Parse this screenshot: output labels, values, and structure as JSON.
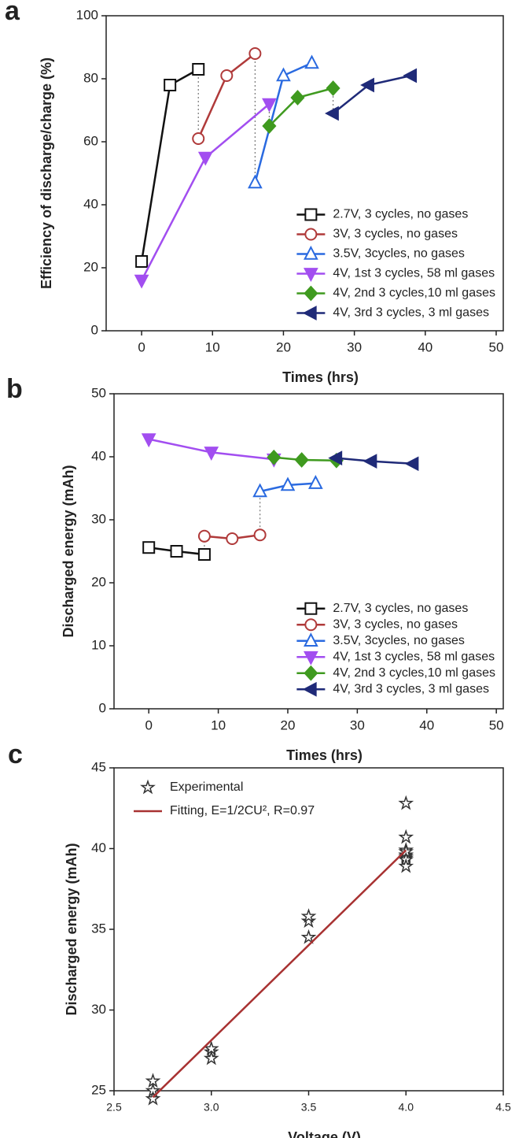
{
  "chart_data": [
    {
      "type": "line",
      "panel": "a",
      "xlabel": "Times (hrs)",
      "ylabel": "Efficiency of discharge/charge (%)",
      "xlim": [
        -5,
        51
      ],
      "xticks": [
        0,
        10,
        20,
        30,
        40,
        50
      ],
      "ylim": [
        0,
        100
      ],
      "yticks": [
        0,
        20,
        40,
        60,
        80,
        100
      ],
      "legend": "lower right",
      "series": [
        {
          "name": "2.7V, 3 cycles, no gases",
          "color": "#111111",
          "marker": "square",
          "x": [
            0,
            4,
            8
          ],
          "values": [
            22,
            78,
            83
          ]
        },
        {
          "name": "3V, 3 cycles, no gases",
          "color": "#b03a3a",
          "marker": "circle",
          "x": [
            8,
            12,
            16
          ],
          "values": [
            61,
            81,
            88
          ]
        },
        {
          "name": "3.5V, 3cycles, no gases",
          "color": "#2a6ae0",
          "marker": "triangle-up",
          "x": [
            16,
            20,
            24
          ],
          "values": [
            47,
            81,
            85
          ]
        },
        {
          "name": "4V, 1st 3 cycles, 58 ml gases",
          "color": "#a24ef0",
          "marker": "triangle-down",
          "x": [
            0,
            9,
            18
          ],
          "values": [
            16,
            55,
            72
          ]
        },
        {
          "name": "4V, 2nd 3 cycles,10 ml gases",
          "color": "#3f9a1f",
          "marker": "diamond",
          "x": [
            18,
            22,
            27
          ],
          "values": [
            65,
            74,
            77
          ]
        },
        {
          "name": "4V, 3rd 3 cycles, 3 ml gases",
          "color": "#1f2a78",
          "marker": "triangle-left",
          "x": [
            27,
            32,
            38
          ],
          "values": [
            69,
            78,
            81
          ]
        }
      ]
    },
    {
      "type": "line",
      "panel": "b",
      "xlabel": "Times (hrs)",
      "ylabel": "Discharged energy (mAh)",
      "xlim": [
        -5,
        51
      ],
      "xticks": [
        0,
        10,
        20,
        30,
        40,
        50
      ],
      "ylim": [
        0,
        50
      ],
      "yticks": [
        0,
        10,
        20,
        30,
        40,
        50
      ],
      "legend": "lower right",
      "series": [
        {
          "name": "2.7V, 3 cycles, no gases",
          "color": "#111111",
          "marker": "square",
          "x": [
            0,
            4,
            8
          ],
          "values": [
            25.6,
            25,
            24.5
          ]
        },
        {
          "name": "3V, 3 cycles, no gases",
          "color": "#b03a3a",
          "marker": "circle",
          "x": [
            8,
            12,
            16
          ],
          "values": [
            27.4,
            27,
            27.6
          ]
        },
        {
          "name": "3.5V, 3cycles, no gases",
          "color": "#2a6ae0",
          "marker": "triangle-up",
          "x": [
            16,
            20,
            24
          ],
          "values": [
            34.5,
            35.5,
            35.8
          ]
        },
        {
          "name": "4V, 1st 3 cycles, 58 ml gases",
          "color": "#a24ef0",
          "marker": "triangle-down",
          "x": [
            0,
            9,
            18
          ],
          "values": [
            42.8,
            40.7,
            39.6
          ]
        },
        {
          "name": "4V, 2nd 3 cycles,10 ml gases",
          "color": "#3f9a1f",
          "marker": "diamond",
          "x": [
            18,
            22,
            27
          ],
          "values": [
            39.9,
            39.5,
            39.4
          ]
        },
        {
          "name": "4V, 3rd 3 cycles, 3 ml gases",
          "color": "#1f2a78",
          "marker": "triangle-left",
          "x": [
            27,
            32,
            38
          ],
          "values": [
            39.8,
            39.3,
            38.9
          ]
        }
      ]
    },
    {
      "type": "scatter",
      "panel": "c",
      "xlabel": "Voltage (V)",
      "ylabel": "Discharged energy (mAh)",
      "xlim": [
        2.5,
        4.5
      ],
      "xticks": [
        {
          "value": 2.5,
          "label": "2.5"
        },
        {
          "value": 3,
          "label": "3.0"
        },
        {
          "value": 3.5,
          "label": "3.5"
        },
        {
          "value": 4,
          "label": "4.0"
        },
        {
          "value": 4.5,
          "label": "4.5"
        }
      ],
      "ylim": [
        25,
        45
      ],
      "yticks": [
        25,
        30,
        35,
        40,
        45
      ],
      "legend": "upper left",
      "series": [
        {
          "name": "Experimental",
          "color": "#333333",
          "marker": "star",
          "linestyle": "none",
          "x": [
            2.7,
            2.7,
            2.7,
            3,
            3,
            3,
            3.5,
            3.5,
            3.5,
            4,
            4,
            4,
            4,
            4,
            4,
            4,
            4,
            4
          ],
          "values": [
            25.6,
            25,
            24.5,
            27.4,
            27,
            27.6,
            34.5,
            35.5,
            35.8,
            42.8,
            40.7,
            39.6,
            39.9,
            39.5,
            39.4,
            39.8,
            39.3,
            38.9
          ]
        },
        {
          "name": "Fitting, E=1/2CU², R=0.97",
          "color": "#a83232",
          "marker": "none",
          "linestyle": "solid",
          "x": [
            2.7,
            4
          ],
          "values": [
            24.6,
            39.9
          ]
        }
      ]
    }
  ]
}
